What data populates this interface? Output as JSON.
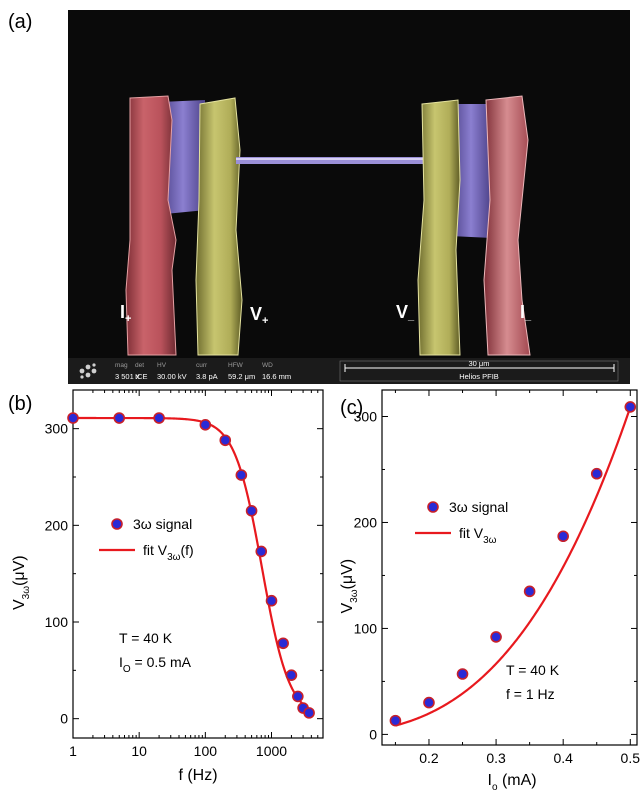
{
  "figure": {
    "panel_a_label": "(a)",
    "panel_b_label": "(b)",
    "panel_c_label": "(c)",
    "sem_image": {
      "description": "false-colour SEM micrograph of suspended nanowire between electrodes",
      "contact_labels": [
        {
          "main": "I",
          "sub": "+"
        },
        {
          "main": "V",
          "sub": "+"
        },
        {
          "main": "V",
          "sub": "_"
        },
        {
          "main": "I",
          "sub": "_"
        }
      ],
      "colors": {
        "current_pad": "#b5535a",
        "voltage_pad": "#b9b861",
        "bridge": "#7d6fc2",
        "background": "#050505"
      },
      "info_bar": {
        "fields": [
          {
            "head": "mag",
            "value": "3 501 x"
          },
          {
            "head": "det",
            "value": "ICE"
          },
          {
            "head": "HV",
            "value": "30.00 kV"
          },
          {
            "head": "curr",
            "value": "3.8 pA"
          },
          {
            "head": "HFW",
            "value": "59.2 μm"
          },
          {
            "head": "WD",
            "value": "16.6 mm"
          }
        ],
        "scale_text": "30 μm",
        "instrument": "Helios PFIB"
      }
    }
  },
  "chart_data": [
    {
      "type": "scatter",
      "panel": "b",
      "xscale": "log",
      "xlim": [
        1,
        6000
      ],
      "ylim": [
        -20,
        340
      ],
      "xticks": [
        1,
        10,
        100,
        1000
      ],
      "xtick_labels": [
        "1",
        "10",
        "100",
        "1000"
      ],
      "yticks": [
        0,
        100,
        200,
        300
      ],
      "ytick_labels": [
        "0",
        "100",
        "200",
        "300"
      ],
      "xlabel": "f (Hz)",
      "ylabel": {
        "prefix": "V",
        "sub": "3ω",
        "suffix": "(μV)"
      },
      "series": [
        {
          "name": "3ω signal",
          "marker_color": "#2a2ad6",
          "marker_edge": "#c8202a",
          "x": [
            1,
            5,
            20,
            100,
            200,
            350,
            500,
            700,
            1000,
            1500,
            2000,
            2500,
            3000,
            3700
          ],
          "y": [
            311,
            311,
            311,
            304,
            288,
            252,
            215,
            173,
            122,
            78,
            45,
            23,
            11,
            6
          ]
        },
        {
          "name": {
            "prefix": "fit V",
            "sub": "3ω",
            "suffix": "(f)"
          },
          "line_color": "#e8191e",
          "fit_model": {
            "a": 311,
            "f0": 720,
            "p": 2.1
          }
        }
      ],
      "annotations": [
        {
          "text": "T = 40 K"
        },
        {
          "prefix": "I",
          "sub": "O",
          "suffix": " = 0.5 mA"
        }
      ]
    },
    {
      "type": "scatter",
      "panel": "c",
      "xlim": [
        0.13,
        0.51
      ],
      "ylim": [
        -10,
        325
      ],
      "xticks": [
        0.2,
        0.3,
        0.4,
        0.5
      ],
      "xtick_labels": [
        "0.2",
        "0.3",
        "0.4",
        "0.5"
      ],
      "yticks": [
        0,
        100,
        200,
        300
      ],
      "ytick_labels": [
        "0",
        "100",
        "200",
        "300"
      ],
      "xlabel": {
        "prefix": "I",
        "sub": "o",
        "suffix": " (mA)"
      },
      "ylabel": {
        "prefix": "V",
        "sub": "3ω",
        "suffix": "(μV)"
      },
      "series": [
        {
          "name": "3ω signal",
          "marker_color": "#2a2ad6",
          "marker_edge": "#c8202a",
          "x": [
            0.15,
            0.2,
            0.25,
            0.3,
            0.35,
            0.4,
            0.45,
            0.5
          ],
          "y": [
            13,
            30,
            57,
            92,
            135,
            187,
            246,
            309
          ]
        },
        {
          "name": {
            "prefix": "fit V",
            "sub": "3ω",
            "suffix": ""
          },
          "line_color": "#e8191e",
          "fit_model": {
            "coef": 2470,
            "power": 3
          }
        }
      ],
      "annotations": [
        {
          "text": "T = 40 K"
        },
        {
          "text": "f = 1 Hz"
        }
      ]
    }
  ]
}
